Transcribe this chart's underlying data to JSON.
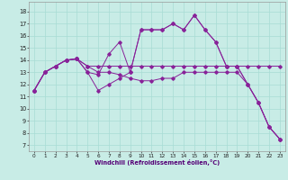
{
  "background_color": "#c8ece6",
  "grid_color": "#a8dcd4",
  "line_color": "#882299",
  "xlabel": "Windchill (Refroidissement éolien,°C)",
  "y_ticks": [
    7,
    8,
    9,
    10,
    11,
    12,
    13,
    14,
    15,
    16,
    17,
    18
  ],
  "x_ticks": [
    0,
    1,
    2,
    3,
    4,
    5,
    6,
    7,
    8,
    9,
    10,
    11,
    12,
    13,
    14,
    15,
    16,
    17,
    18,
    19,
    20,
    21,
    22,
    23
  ],
  "xlim": [
    -0.5,
    23.5
  ],
  "ylim": [
    6.5,
    18.8
  ],
  "series": [
    {
      "x": [
        0,
        1,
        2,
        3,
        4,
        5,
        6,
        7,
        8,
        9,
        10,
        11,
        12,
        13,
        14,
        15,
        16,
        17,
        18,
        19,
        20,
        21,
        22,
        23
      ],
      "y": [
        11.5,
        13.0,
        13.5,
        14.0,
        14.1,
        13.0,
        11.5,
        12.0,
        12.5,
        13.0,
        16.5,
        16.5,
        16.5,
        17.0,
        16.5,
        17.7,
        16.5,
        15.5,
        13.5,
        13.5,
        12.0,
        10.5,
        8.5,
        7.5
      ]
    },
    {
      "x": [
        0,
        1,
        2,
        3,
        4,
        5,
        6,
        7,
        8,
        9,
        10,
        11,
        12,
        13,
        14,
        15,
        16,
        17,
        18,
        19,
        20,
        21,
        22,
        23
      ],
      "y": [
        11.5,
        13.0,
        13.5,
        14.0,
        14.1,
        13.5,
        13.5,
        13.5,
        13.5,
        13.5,
        13.5,
        13.5,
        13.5,
        13.5,
        13.5,
        13.5,
        13.5,
        13.5,
        13.5,
        13.5,
        13.5,
        13.5,
        13.5,
        13.5
      ]
    },
    {
      "x": [
        0,
        1,
        2,
        3,
        4,
        5,
        6,
        7,
        8,
        9,
        10,
        11,
        12,
        13,
        14,
        15,
        16,
        17,
        18,
        19,
        20,
        21,
        22,
        23
      ],
      "y": [
        11.5,
        13.0,
        13.5,
        14.0,
        14.1,
        13.5,
        13.0,
        13.0,
        12.8,
        12.5,
        12.3,
        12.3,
        12.5,
        12.5,
        13.0,
        13.0,
        13.0,
        13.0,
        13.0,
        13.0,
        12.0,
        10.5,
        8.5,
        7.5
      ]
    },
    {
      "x": [
        0,
        1,
        2,
        3,
        4,
        5,
        6,
        7,
        8,
        9,
        10,
        11,
        12,
        13,
        14,
        15,
        16,
        17,
        18,
        19,
        20,
        21,
        22,
        23
      ],
      "y": [
        11.5,
        13.0,
        13.5,
        14.0,
        14.1,
        13.0,
        12.8,
        14.5,
        15.5,
        13.0,
        16.5,
        16.5,
        16.5,
        17.0,
        16.5,
        17.7,
        16.5,
        15.5,
        13.5,
        13.5,
        12.0,
        10.5,
        8.5,
        7.5
      ]
    }
  ]
}
